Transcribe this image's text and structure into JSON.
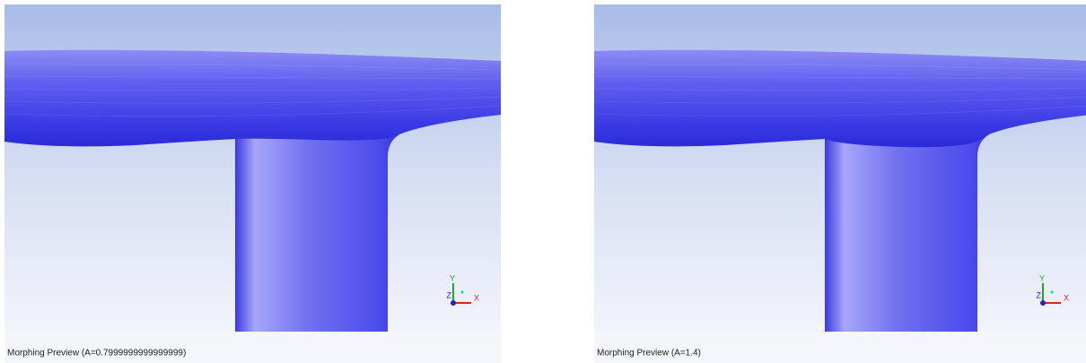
{
  "panels": [
    {
      "caption": "Morphing Preview (A=0.7999999999999999)",
      "triad": {
        "x": "X",
        "y": "Y",
        "z": "Z"
      }
    },
    {
      "caption": "Morphing Preview (A=1.4)",
      "triad": {
        "x": "X",
        "y": "Y",
        "z": "Z"
      }
    }
  ]
}
